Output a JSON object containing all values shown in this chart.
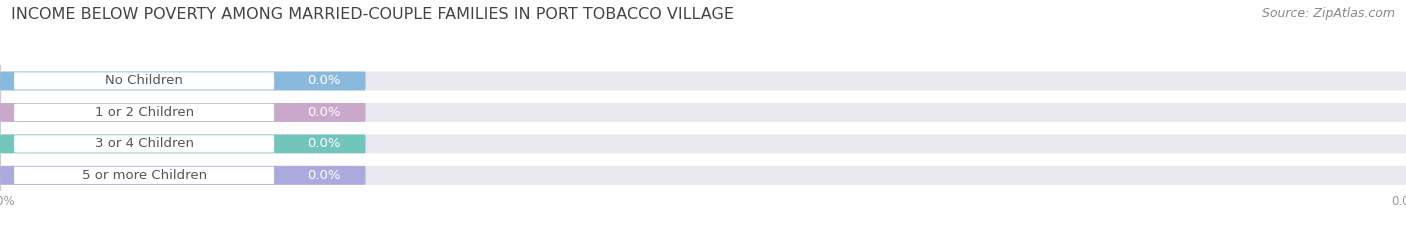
{
  "title": "INCOME BELOW POVERTY AMONG MARRIED-COUPLE FAMILIES IN PORT TOBACCO VILLAGE",
  "source": "Source: ZipAtlas.com",
  "categories": [
    "No Children",
    "1 or 2 Children",
    "3 or 4 Children",
    "5 or more Children"
  ],
  "values": [
    0.0,
    0.0,
    0.0,
    0.0
  ],
  "bar_colors": [
    "#8ab9de",
    "#c9a8cc",
    "#72c4bc",
    "#aaaade"
  ],
  "bar_bg_color": "#e8e8ee",
  "fig_bg_color": "#ffffff",
  "title_fontsize": 11.5,
  "source_fontsize": 9,
  "label_fontsize": 9.5,
  "value_fontsize": 9.5,
  "label_text_color": "#555555",
  "value_text_color": "#ffffff",
  "grid_color": "#cccccc",
  "tick_color": "#999999"
}
